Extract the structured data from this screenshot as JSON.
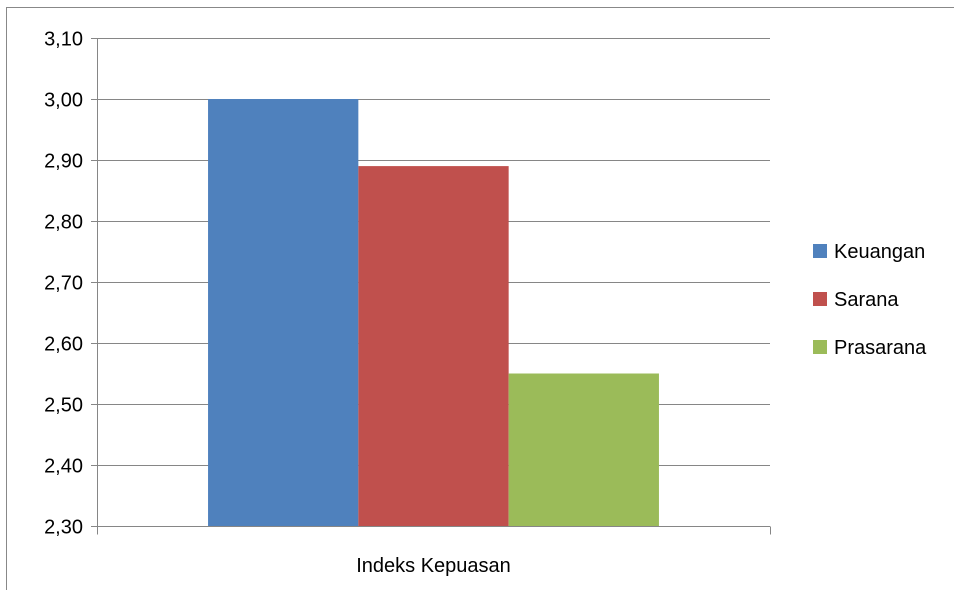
{
  "chart_data": {
    "type": "bar",
    "categories": [
      "Indeks Kepuasan"
    ],
    "series": [
      {
        "name": "Keuangan",
        "values": [
          3.0
        ],
        "color": "#4F81BD"
      },
      {
        "name": "Sarana",
        "values": [
          2.89
        ],
        "color": "#C0504D"
      },
      {
        "name": "Prasarana",
        "values": [
          2.55
        ],
        "color": "#9BBB59"
      }
    ],
    "title": "",
    "xlabel": "",
    "ylabel": "",
    "ylim": [
      2.3,
      3.1
    ],
    "y_ticks": [
      "2,30",
      "2,40",
      "2,50",
      "2,60",
      "2,70",
      "2,80",
      "2,90",
      "3,00",
      "3,10"
    ],
    "grid": true,
    "legend_position": "right"
  }
}
